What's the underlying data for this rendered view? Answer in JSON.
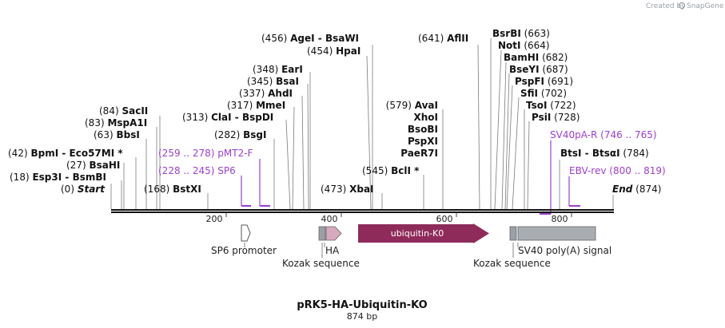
{
  "header": {
    "credit_text": "Created by",
    "credit_brand": "SnapGene"
  },
  "plasmid": {
    "name": "pRK5-HA-Ubiquitin-KO",
    "length_text": "874 bp",
    "length_bp": 874,
    "start_label": "Start",
    "start_pos": "(0)",
    "end_label": "End",
    "end_pos": "(874)"
  },
  "ruler": {
    "ticks": [
      "200",
      "400",
      "600",
      "800"
    ]
  },
  "sites": [
    {
      "name": "Esp3I",
      "pos": "(18)",
      "alt": "BsmBI"
    },
    {
      "name": "BsaHI",
      "pos": "(27)"
    },
    {
      "name": "BpmI",
      "pos": "(42)",
      "alt": "Eco57MI",
      "star": "*"
    },
    {
      "name": "BbsI",
      "pos": "(63)"
    },
    {
      "name": "MspA1I",
      "pos": "(83)"
    },
    {
      "name": "SacII",
      "pos": "(84)"
    },
    {
      "name": "BstXI",
      "pos": "(168)"
    },
    {
      "name": "BsgI",
      "pos": "(282)"
    },
    {
      "name": "ClaI",
      "pos": "(313)",
      "alt": "BspDI"
    },
    {
      "name": "MmeI",
      "pos": "(317)"
    },
    {
      "name": "AhdI",
      "pos": "(337)"
    },
    {
      "name": "BsaI",
      "pos": "(345)"
    },
    {
      "name": "EarI",
      "pos": "(348)"
    },
    {
      "name": "HpaI",
      "pos": "(454)"
    },
    {
      "name": "AgeI",
      "pos": "(456)",
      "alt": "BsaWI"
    },
    {
      "name": "XbaI",
      "pos": "(473)"
    },
    {
      "name": "BclI",
      "pos": "(545)",
      "star": "*"
    },
    {
      "name": "PaeR7I",
      "pos": ""
    },
    {
      "name": "PspXI",
      "pos": ""
    },
    {
      "name": "BsoBI",
      "pos": ""
    },
    {
      "name": "XhoI",
      "pos": ""
    },
    {
      "name": "AvaI",
      "pos": "(579)"
    },
    {
      "name": "AflII",
      "pos": "(641)"
    },
    {
      "name": "BsrBI",
      "pos": "(663)"
    },
    {
      "name": "NotI",
      "pos": "(664)"
    },
    {
      "name": "BamHI",
      "pos": "(682)"
    },
    {
      "name": "BseYI",
      "pos": "(687)"
    },
    {
      "name": "PspFI",
      "pos": "(691)"
    },
    {
      "name": "SfiI",
      "pos": "(702)"
    },
    {
      "name": "TsoI",
      "pos": "(722)"
    },
    {
      "name": "PsiI",
      "pos": "(728)"
    },
    {
      "name": "BtsI",
      "pos": "(784)",
      "alt": "BtsαI"
    }
  ],
  "primers": [
    {
      "name": "SP6",
      "range": "(228 .. 245)"
    },
    {
      "name": "pMT2-F",
      "range": "(259 .. 278)"
    },
    {
      "name": "SV40pA-R",
      "range": "(746 .. 765)"
    },
    {
      "name": "EBV-rev",
      "range": "(800 .. 819)"
    }
  ],
  "features": [
    {
      "name": "SP6 promoter"
    },
    {
      "name": "HA"
    },
    {
      "name": "Kozak sequence"
    },
    {
      "name": "ubiquitin-K0"
    },
    {
      "name": "Kozak sequence"
    },
    {
      "name": "SV40 poly(A) signal"
    }
  ],
  "colors": {
    "ubiquitin": "#8e2b5a",
    "ha": "#d7a9bd",
    "kozak": "#9aa0a8",
    "sv40": "#a9adb2",
    "promoter": "#ffffff",
    "primer": "#9a3fd0",
    "backbone": "#111111"
  }
}
